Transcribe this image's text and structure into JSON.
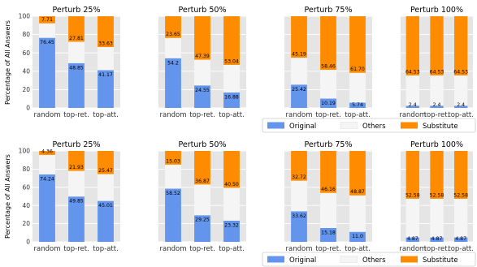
{
  "figure": {
    "ylabel": "Percentage of All Answers",
    "legend": [
      {
        "name": "Original",
        "color": "#6495ED"
      },
      {
        "name": "Others",
        "color": "#F5F5F5"
      },
      {
        "name": "Substitute",
        "color": "#FF8C00"
      }
    ]
  },
  "chart_data": [
    {
      "type": "bar",
      "stacked": true,
      "title": "Perturb 25%",
      "categories": [
        "random",
        "top-ret.",
        "top-att."
      ],
      "ylim": [
        0,
        100
      ],
      "yticks": [
        0,
        20,
        40,
        60,
        80,
        100
      ],
      "grid": true,
      "series": [
        {
          "name": "Original",
          "values": [
            76.45,
            48.85,
            41.17
          ],
          "labels": [
            "76.45",
            "48.85",
            "41.17"
          ]
        },
        {
          "name": "Others",
          "values": [
            15.84,
            23.34,
            25.2
          ],
          "labels": [
            "",
            "",
            ""
          ]
        },
        {
          "name": "Substitute",
          "values": [
            7.71,
            27.81,
            33.63
          ],
          "labels": [
            "7.71",
            "27.81",
            "33.63"
          ]
        }
      ]
    },
    {
      "type": "bar",
      "stacked": true,
      "title": "Perturb 50%",
      "categories": [
        "random",
        "top-ret.",
        "top-att."
      ],
      "ylim": [
        0,
        100
      ],
      "yticks": [
        0,
        20,
        40,
        60,
        80,
        100
      ],
      "grid": true,
      "series": [
        {
          "name": "Original",
          "values": [
            54.2,
            24.55,
            16.88
          ],
          "labels": [
            "54.2",
            "24.55",
            "16.88"
          ]
        },
        {
          "name": "Others",
          "values": [
            22.15,
            28.06,
            30.08
          ],
          "labels": [
            "",
            "",
            ""
          ]
        },
        {
          "name": "Substitute",
          "values": [
            23.65,
            47.39,
            53.04
          ],
          "labels": [
            "23.65",
            "47.39",
            "53.04"
          ]
        }
      ]
    },
    {
      "type": "bar",
      "stacked": true,
      "title": "Perturb 75%",
      "categories": [
        "random",
        "top-ret.",
        "top-att."
      ],
      "ylim": [
        0,
        100
      ],
      "yticks": [
        0,
        20,
        40,
        60,
        80,
        100
      ],
      "grid": true,
      "series": [
        {
          "name": "Original",
          "values": [
            25.42,
            10.19,
            5.74
          ],
          "labels": [
            "25.42",
            "10.19",
            "5.74"
          ]
        },
        {
          "name": "Others",
          "values": [
            29.39,
            31.35,
            32.56
          ],
          "labels": [
            "",
            "",
            ""
          ]
        },
        {
          "name": "Substitute",
          "values": [
            45.19,
            58.46,
            61.7
          ],
          "labels": [
            "45.19",
            "58.46",
            "61.70"
          ]
        }
      ]
    },
    {
      "type": "bar",
      "stacked": true,
      "title": "Perturb 100%",
      "categories": [
        "random",
        "top-ret.",
        "top-att."
      ],
      "ylim": [
        0,
        100
      ],
      "yticks": [
        0,
        20,
        40,
        60,
        80,
        100
      ],
      "grid": true,
      "series": [
        {
          "name": "Original",
          "values": [
            2.4,
            2.4,
            2.4
          ],
          "labels": [
            "2.4",
            "2.4",
            "2.4"
          ]
        },
        {
          "name": "Others",
          "values": [
            33.07,
            33.07,
            33.07
          ],
          "labels": [
            "",
            "",
            ""
          ]
        },
        {
          "name": "Substitute",
          "values": [
            64.53,
            64.53,
            64.53
          ],
          "labels": [
            "64.53",
            "64.53",
            "64.53"
          ]
        }
      ]
    },
    {
      "type": "bar",
      "stacked": true,
      "title": "Perturb 25%",
      "categories": [
        "random",
        "top-ret.",
        "top-att."
      ],
      "ylim": [
        0,
        100
      ],
      "yticks": [
        0,
        20,
        40,
        60,
        80,
        100
      ],
      "grid": true,
      "series": [
        {
          "name": "Original",
          "values": [
            74.24,
            49.85,
            45.01
          ],
          "labels": [
            "74.24",
            "49.85",
            "45.01"
          ]
        },
        {
          "name": "Others",
          "values": [
            21.4,
            28.22,
            29.52
          ],
          "labels": [
            "",
            "",
            ""
          ]
        },
        {
          "name": "Substitute",
          "values": [
            4.36,
            21.93,
            25.47
          ],
          "labels": [
            "4.36",
            "21.93",
            "25.47"
          ]
        }
      ]
    },
    {
      "type": "bar",
      "stacked": true,
      "title": "Perturb 50%",
      "categories": [
        "random",
        "top-ret.",
        "top-att."
      ],
      "ylim": [
        0,
        100
      ],
      "yticks": [
        0,
        20,
        40,
        60,
        80,
        100
      ],
      "grid": true,
      "series": [
        {
          "name": "Original",
          "values": [
            58.52,
            29.25,
            23.32
          ],
          "labels": [
            "58.52",
            "29.25",
            "23.32"
          ]
        },
        {
          "name": "Others",
          "values": [
            26.45,
            33.88,
            36.18
          ],
          "labels": [
            "",
            "",
            ""
          ]
        },
        {
          "name": "Substitute",
          "values": [
            15.03,
            36.87,
            40.5
          ],
          "labels": [
            "15.03",
            "36.87",
            "40.50"
          ]
        }
      ]
    },
    {
      "type": "bar",
      "stacked": true,
      "title": "Perturb 75%",
      "categories": [
        "random",
        "top-ret.",
        "top-att."
      ],
      "ylim": [
        0,
        100
      ],
      "yticks": [
        0,
        20,
        40,
        60,
        80,
        100
      ],
      "grid": true,
      "series": [
        {
          "name": "Original",
          "values": [
            33.62,
            15.18,
            11.0
          ],
          "labels": [
            "33.62",
            "15.18",
            "11.0"
          ]
        },
        {
          "name": "Others",
          "values": [
            33.66,
            38.66,
            40.12
          ],
          "labels": [
            "",
            "",
            ""
          ]
        },
        {
          "name": "Substitute",
          "values": [
            32.72,
            46.16,
            48.87
          ],
          "labels": [
            "32.72",
            "46.16",
            "48.87"
          ]
        }
      ]
    },
    {
      "type": "bar",
      "stacked": true,
      "title": "Perturb 100%",
      "categories": [
        "random",
        "top-ret.",
        "top-att."
      ],
      "ylim": [
        0,
        100
      ],
      "yticks": [
        0,
        20,
        40,
        60,
        80,
        100
      ],
      "grid": true,
      "series": [
        {
          "name": "Original",
          "values": [
            4.87,
            4.87,
            4.87
          ],
          "labels": [
            "4.87",
            "4.87",
            "4.87"
          ]
        },
        {
          "name": "Others",
          "values": [
            42.55,
            42.55,
            42.55
          ],
          "labels": [
            "",
            "",
            ""
          ]
        },
        {
          "name": "Substitute",
          "values": [
            52.58,
            52.58,
            52.58
          ],
          "labels": [
            "52.58",
            "52.58",
            "52.58"
          ]
        }
      ]
    }
  ]
}
